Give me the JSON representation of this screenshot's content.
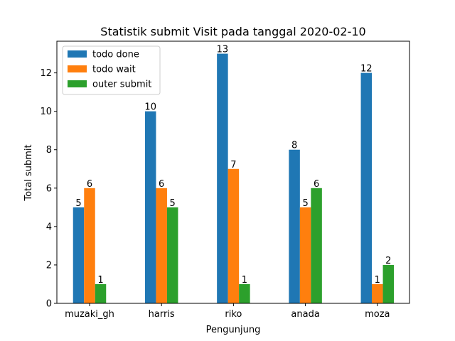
{
  "chart_data": {
    "type": "bar",
    "title": "Statistik submit Visit pada tanggal 2020-02-10",
    "xlabel": "Pengunjung",
    "ylabel": "Total submit",
    "categories": [
      "muzaki_gh",
      "harris",
      "riko",
      "anada",
      "moza"
    ],
    "series": [
      {
        "name": "todo done",
        "values": [
          5,
          10,
          13,
          8,
          12
        ],
        "color": "#1f77b4"
      },
      {
        "name": "todo wait",
        "values": [
          6,
          6,
          7,
          5,
          1
        ],
        "color": "#ff7f0e"
      },
      {
        "name": "outer submit",
        "values": [
          1,
          5,
          1,
          6,
          2
        ],
        "color": "#2ca02c"
      }
    ],
    "ylim": [
      0,
      13.65
    ],
    "yticks": [
      0,
      2,
      4,
      6,
      8,
      10,
      12
    ],
    "legend_position": "top-left",
    "grid": false
  }
}
